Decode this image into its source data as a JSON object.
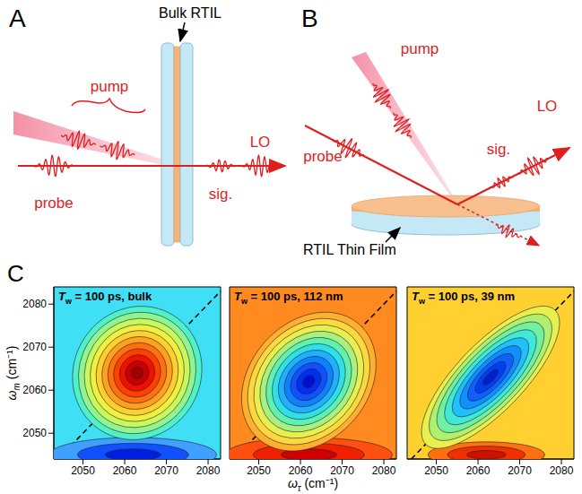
{
  "diagrams": {
    "A": {
      "label": "A",
      "cell": "Bulk RTIL",
      "pump": "pump",
      "probe": "probe",
      "lo": "LO",
      "signal": "sig."
    },
    "B": {
      "label": "B",
      "film": "RTIL Thin Film",
      "pump": "pump",
      "probe": "probe",
      "lo": "LO",
      "signal": "sig."
    }
  },
  "panel_label": "C",
  "chart_data": [
    {
      "type": "contour",
      "title": "Tw = 100 ps, bulk",
      "y_label": "ωm (cm⁻¹)",
      "xlim": [
        2043,
        2083
      ],
      "ylim": [
        2044,
        2084
      ],
      "xticks": [
        2050,
        2060,
        2070,
        2080
      ],
      "yticks": [
        2050,
        2060,
        2070,
        2080
      ],
      "color": "#3fe0f5",
      "peaks": [
        {
          "x": 2062,
          "y": 2045,
          "x_radius": 20,
          "y_radius": 4,
          "colors": [
            "#40a0ff",
            "#1050ff",
            "#0020e0"
          ]
        },
        {
          "x": 2063,
          "y": 2064,
          "diagonal_radius": 16,
          "antidiagonal_radius": 15,
          "colors": [
            "#50f0c8",
            "#90f590",
            "#c8f860",
            "#f0f040",
            "#ffd030",
            "#ffa020",
            "#ff7010",
            "#ff4000",
            "#f01000",
            "#c80000",
            "#a00000"
          ]
        }
      ]
    },
    {
      "type": "contour",
      "title": "Tw = 100 ps, 112 nm",
      "x_label": "ωτ (cm⁻¹)",
      "xlim": [
        2043,
        2083
      ],
      "ylim": [
        2044,
        2084
      ],
      "xticks": [
        2050,
        2060,
        2070,
        2080
      ],
      "yticks": [
        2050,
        2060,
        2070,
        2080
      ],
      "tick_labels": "x",
      "color": "#ff8a20",
      "peaks": [
        {
          "x": 2062,
          "y": 2045,
          "x_radius": 20,
          "y_radius": 4,
          "colors": [
            "#ff5010",
            "#f02000",
            "#d00000"
          ]
        },
        {
          "x": 2062,
          "y": 2062,
          "diagonal_radius": 18,
          "antidiagonal_radius": 14,
          "colors": [
            "#ffb030",
            "#ffd840",
            "#e8f050",
            "#a8f080",
            "#60f0b0",
            "#30e0e8",
            "#20b0ff",
            "#1080ff",
            "#1050ff",
            "#0030f0",
            "#0010d0"
          ]
        }
      ]
    },
    {
      "type": "contour",
      "title": "Tw = 100 ps, 39 nm",
      "xlim": [
        2043,
        2083
      ],
      "ylim": [
        2044,
        2084
      ],
      "xticks": [
        2050,
        2060,
        2070,
        2080
      ],
      "yticks": [
        2050,
        2060,
        2070,
        2080
      ],
      "tick_labels": "x",
      "color": "#ffd030",
      "peaks": [
        {
          "x": 2062,
          "y": 2045,
          "x_radius": 14,
          "y_radius": 3,
          "colors": [
            "#ff7010",
            "#f03000",
            "#d01000"
          ]
        },
        {
          "x": 2063,
          "y": 2063,
          "diagonal_radius": 22,
          "antidiagonal_radius": 8,
          "colors": [
            "#e8f050",
            "#b0f070",
            "#70f0a0",
            "#40e8d8",
            "#20c0ff",
            "#1090ff",
            "#1060ff",
            "#0040f0",
            "#0020d0"
          ]
        }
      ]
    }
  ]
}
